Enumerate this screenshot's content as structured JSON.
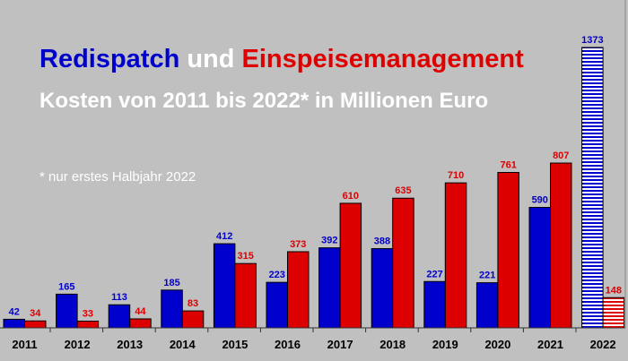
{
  "chart_data": {
    "type": "bar",
    "title_parts": [
      "Redispatch",
      "und",
      "Einspeisemanagement"
    ],
    "subtitle": "Kosten von 2011 bis 2022* in Millionen Euro",
    "footnote": "* nur erstes Halbjahr 2022",
    "categories": [
      "2011",
      "2012",
      "2013",
      "2014",
      "2015",
      "2016",
      "2017",
      "2018",
      "2019",
      "2020",
      "2021",
      "2022"
    ],
    "series": [
      {
        "name": "Redispatch",
        "color": "#0000cc",
        "values": [
          42,
          165,
          113,
          185,
          412,
          223,
          392,
          388,
          227,
          221,
          590,
          1373
        ]
      },
      {
        "name": "Einspeisemanagement",
        "color": "#dd0000",
        "values": [
          34,
          33,
          44,
          83,
          315,
          373,
          610,
          635,
          710,
          761,
          807,
          148
        ]
      }
    ],
    "hatched_categories": [
      "2022"
    ],
    "ylim": [
      0,
      1373
    ],
    "xlabel": "",
    "ylabel": "",
    "grid": false,
    "background": "#c0c0c0"
  }
}
